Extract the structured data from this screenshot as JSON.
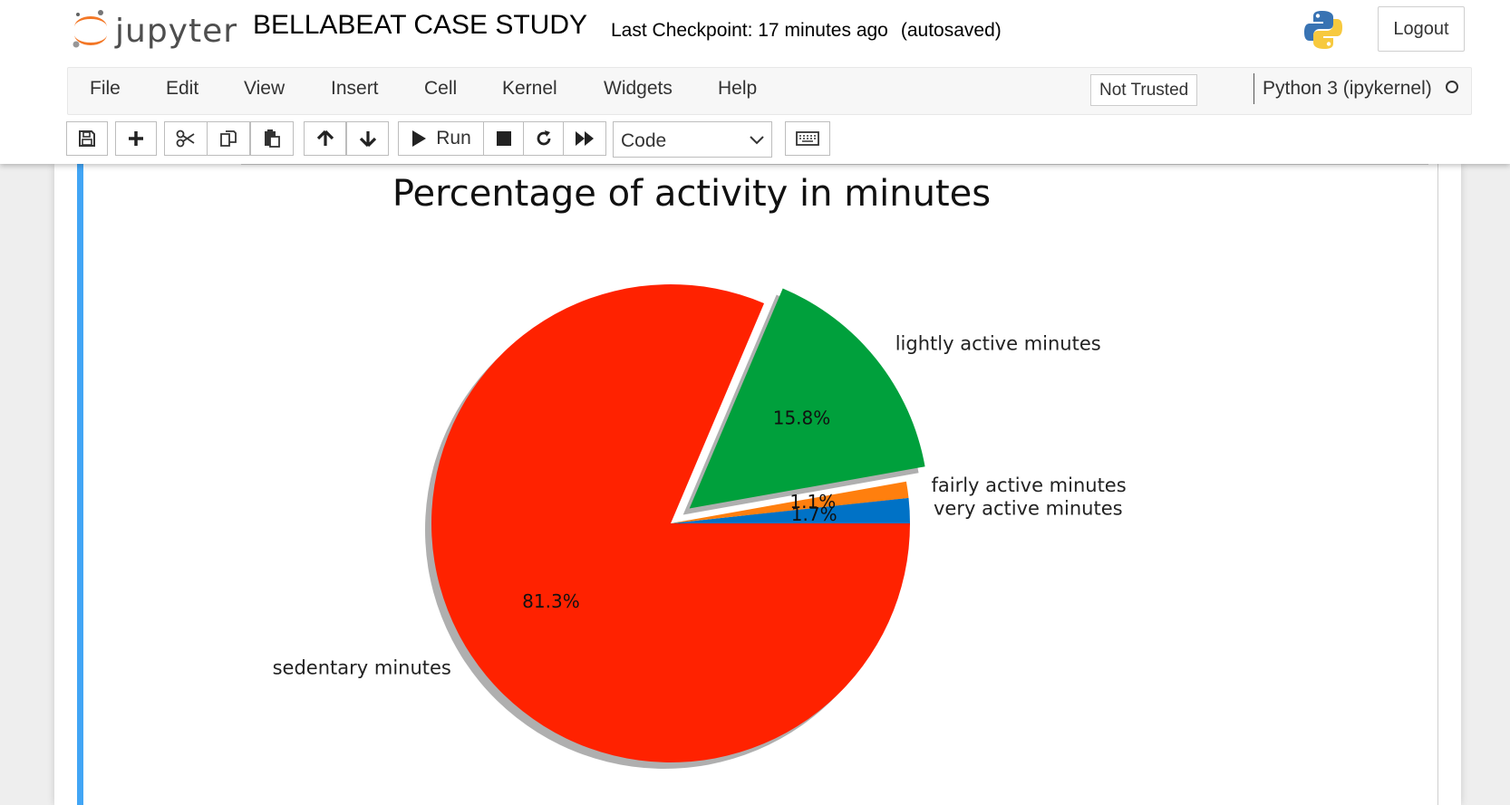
{
  "header": {
    "logo_text": "jupyter",
    "notebook_title": "BELLABEAT CASE STUDY",
    "checkpoint": "Last Checkpoint: 17 minutes ago",
    "autosave": "(autosaved)",
    "logout_label": "Logout"
  },
  "menu": {
    "items": [
      "File",
      "Edit",
      "View",
      "Insert",
      "Cell",
      "Kernel",
      "Widgets",
      "Help"
    ],
    "trust_label": "Not Trusted",
    "kernel_name": "Python 3 (ipykernel)"
  },
  "toolbar": {
    "run_label": "Run",
    "cell_type": "Code",
    "icons": [
      "save-icon",
      "plus-icon",
      "scissors-icon",
      "copy-icon",
      "paste-icon",
      "arrow-up-icon",
      "arrow-down-icon",
      "play-icon",
      "stop-icon",
      "restart-icon",
      "fast-forward-icon",
      "keyboard-icon"
    ]
  },
  "colors": {
    "cell_selected_bar": "#42a5f5",
    "sedentary": "#ff2200",
    "lightly": "#00a03c",
    "fairly": "#ff7f0e",
    "very": "#0072c6"
  },
  "chart_data": {
    "type": "pie",
    "title": "Percentage of activity in minutes",
    "start_angle_deg": 0,
    "shadow": true,
    "slices": [
      {
        "label": "very active minutes",
        "value": 1.7,
        "pct_label": "1.7%",
        "color": "#0072c6",
        "explode": 0
      },
      {
        "label": "fairly active minutes",
        "value": 1.1,
        "pct_label": "1.1%",
        "color": "#ff7f0e",
        "explode": 0
      },
      {
        "label": "lightly active minutes",
        "value": 15.8,
        "pct_label": "15.8%",
        "color": "#00a03c",
        "explode": 0.1
      },
      {
        "label": "sedentary minutes",
        "value": 81.3,
        "pct_label": "81.3%",
        "color": "#ff2200",
        "explode": 0
      }
    ]
  }
}
